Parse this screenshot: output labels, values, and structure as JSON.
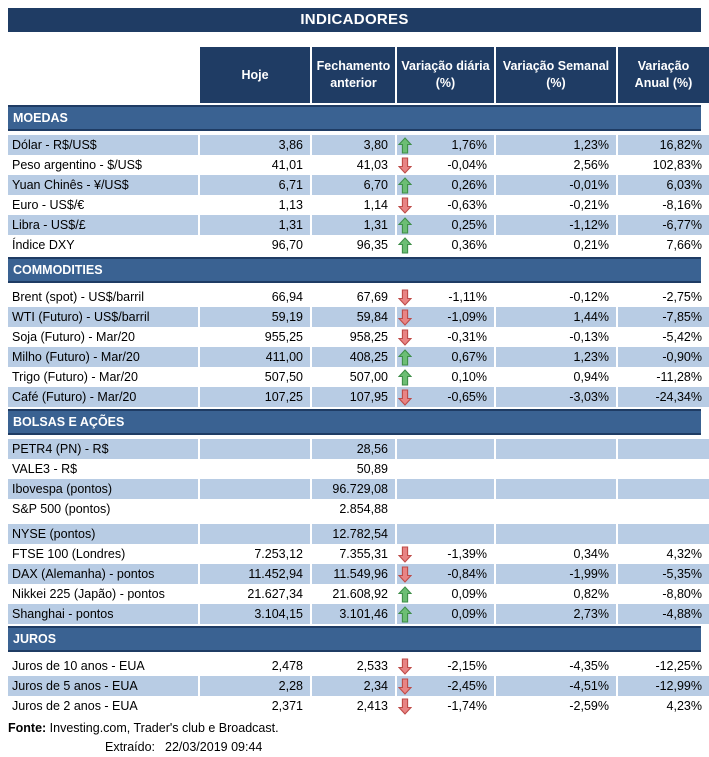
{
  "title": "INDICADORES",
  "columns": [
    "Hoje",
    "Fechamento anterior",
    "Variação diária (%)",
    "Variação Semanal (%)",
    "Variação Anual (%)"
  ],
  "colors": {
    "navy": "#1F3C64",
    "steel_blue": "#3A6292",
    "row_blue": "#B8CCE4",
    "up_arrow_fill": "#6CBE74",
    "up_arrow_stroke": "#3E8E49",
    "down_arrow_fill": "#E88484",
    "down_arrow_stroke": "#BE4B48"
  },
  "sections": [
    {
      "name": "MOEDAS",
      "zebra_start": "blue",
      "rows": [
        {
          "label": "Dólar - R$/US$",
          "hoje": "3,86",
          "fech": "3,80",
          "arrow": "up",
          "dia": "1,76%",
          "sem": "1,23%",
          "anual": "16,82%"
        },
        {
          "label": "Peso argentino - $/US$",
          "hoje": "41,01",
          "fech": "41,03",
          "arrow": "down",
          "dia": "-0,04%",
          "sem": "2,56%",
          "anual": "102,83%"
        },
        {
          "label": "Yuan Chinês - ¥/US$",
          "hoje": "6,71",
          "fech": "6,70",
          "arrow": "up",
          "dia": "0,26%",
          "sem": "-0,01%",
          "anual": "6,03%"
        },
        {
          "label": "Euro - US$/€",
          "hoje": "1,13",
          "fech": "1,14",
          "arrow": "down",
          "dia": "-0,63%",
          "sem": "-0,21%",
          "anual": "-8,16%"
        },
        {
          "label": "Libra - US$/£",
          "hoje": "1,31",
          "fech": "1,31",
          "arrow": "up",
          "dia": "0,25%",
          "sem": "-1,12%",
          "anual": "-6,77%"
        },
        {
          "label": "Índice DXY",
          "hoje": "96,70",
          "fech": "96,35",
          "arrow": "up",
          "dia": "0,36%",
          "sem": "0,21%",
          "anual": "7,66%"
        }
      ]
    },
    {
      "name": "COMMODITIES",
      "zebra_start": "white",
      "rows": [
        {
          "label": "Brent (spot) - US$/barril",
          "hoje": "66,94",
          "fech": "67,69",
          "arrow": "down",
          "dia": "-1,11%",
          "sem": "-0,12%",
          "anual": "-2,75%"
        },
        {
          "label": "WTI (Futuro) - US$/barril",
          "hoje": "59,19",
          "fech": "59,84",
          "arrow": "down",
          "dia": "-1,09%",
          "sem": "1,44%",
          "anual": "-7,85%"
        },
        {
          "label": "Soja (Futuro) - Mar/20",
          "hoje": "955,25",
          "fech": "958,25",
          "arrow": "down",
          "dia": "-0,31%",
          "sem": "-0,13%",
          "anual": "-5,42%"
        },
        {
          "label": "Milho (Futuro) - Mar/20",
          "hoje": "411,00",
          "fech": "408,25",
          "arrow": "up",
          "dia": "0,67%",
          "sem": "1,23%",
          "anual": "-0,90%"
        },
        {
          "label": "Trigo (Futuro) - Mar/20",
          "hoje": "507,50",
          "fech": "507,00",
          "arrow": "up",
          "dia": "0,10%",
          "sem": "0,94%",
          "anual": "-11,28%"
        },
        {
          "label": "Café (Futuro) - Mar/20",
          "hoje": "107,25",
          "fech": "107,95",
          "arrow": "down",
          "dia": "-0,65%",
          "sem": "-3,03%",
          "anual": "-24,34%"
        }
      ]
    },
    {
      "name": "BOLSAS E AÇÕES",
      "zebra_start": "blue",
      "rows": [
        {
          "label": "PETR4 (PN) - R$",
          "hoje": "",
          "fech": "28,56",
          "arrow": null,
          "dia": "",
          "sem": "",
          "anual": ""
        },
        {
          "label": "VALE3 - R$",
          "hoje": "",
          "fech": "50,89",
          "arrow": null,
          "dia": "",
          "sem": "",
          "anual": ""
        },
        {
          "label": "Ibovespa (pontos)",
          "hoje": "",
          "fech": "96.729,08",
          "arrow": null,
          "dia": "",
          "sem": "",
          "anual": ""
        },
        {
          "label": "S&P 500 (pontos)",
          "hoje": "",
          "fech": "2.854,88",
          "arrow": null,
          "dia": "",
          "sem": "",
          "anual": ""
        },
        {
          "label": "NYSE (pontos)",
          "hoje": "",
          "fech": "12.782,54",
          "arrow": null,
          "dia": "",
          "sem": "",
          "anual": "",
          "spacer_before": true
        },
        {
          "label": "FTSE 100 (Londres)",
          "hoje": "7.253,12",
          "fech": "7.355,31",
          "arrow": "down",
          "dia": "-1,39%",
          "sem": "0,34%",
          "anual": "4,32%"
        },
        {
          "label": "DAX (Alemanha) - pontos",
          "hoje": "11.452,94",
          "fech": "11.549,96",
          "arrow": "down",
          "dia": "-0,84%",
          "sem": "-1,99%",
          "anual": "-5,35%"
        },
        {
          "label": "Nikkei 225 (Japão) - pontos",
          "hoje": "21.627,34",
          "fech": "21.608,92",
          "arrow": "up",
          "dia": "0,09%",
          "sem": "0,82%",
          "anual": "-8,80%"
        },
        {
          "label": "Shanghai - pontos",
          "hoje": "3.104,15",
          "fech": "3.101,46",
          "arrow": "up",
          "dia": "0,09%",
          "sem": "2,73%",
          "anual": "-4,88%"
        }
      ]
    },
    {
      "name": "JUROS",
      "zebra_start": "white",
      "rows": [
        {
          "label": "Juros de 10 anos - EUA",
          "hoje": "2,478",
          "fech": "2,533",
          "arrow": "down",
          "dia": "-2,15%",
          "sem": "-4,35%",
          "anual": "-12,25%"
        },
        {
          "label": "Juros de 5 anos - EUA",
          "hoje": "2,28",
          "fech": "2,34",
          "arrow": "down",
          "dia": "-2,45%",
          "sem": "-4,51%",
          "anual": "-12,99%"
        },
        {
          "label": "Juros de 2 anos - EUA",
          "hoje": "2,371",
          "fech": "2,413",
          "arrow": "down",
          "dia": "-1,74%",
          "sem": "-2,59%",
          "anual": "4,23%"
        }
      ]
    }
  ],
  "footer": {
    "fonte_label": "Fonte:",
    "fonte_text": " Investing.com, Trader's club e Broadcast.",
    "extraido_label": "Extraído:",
    "extraido_value": "22/03/2019 09:44"
  }
}
